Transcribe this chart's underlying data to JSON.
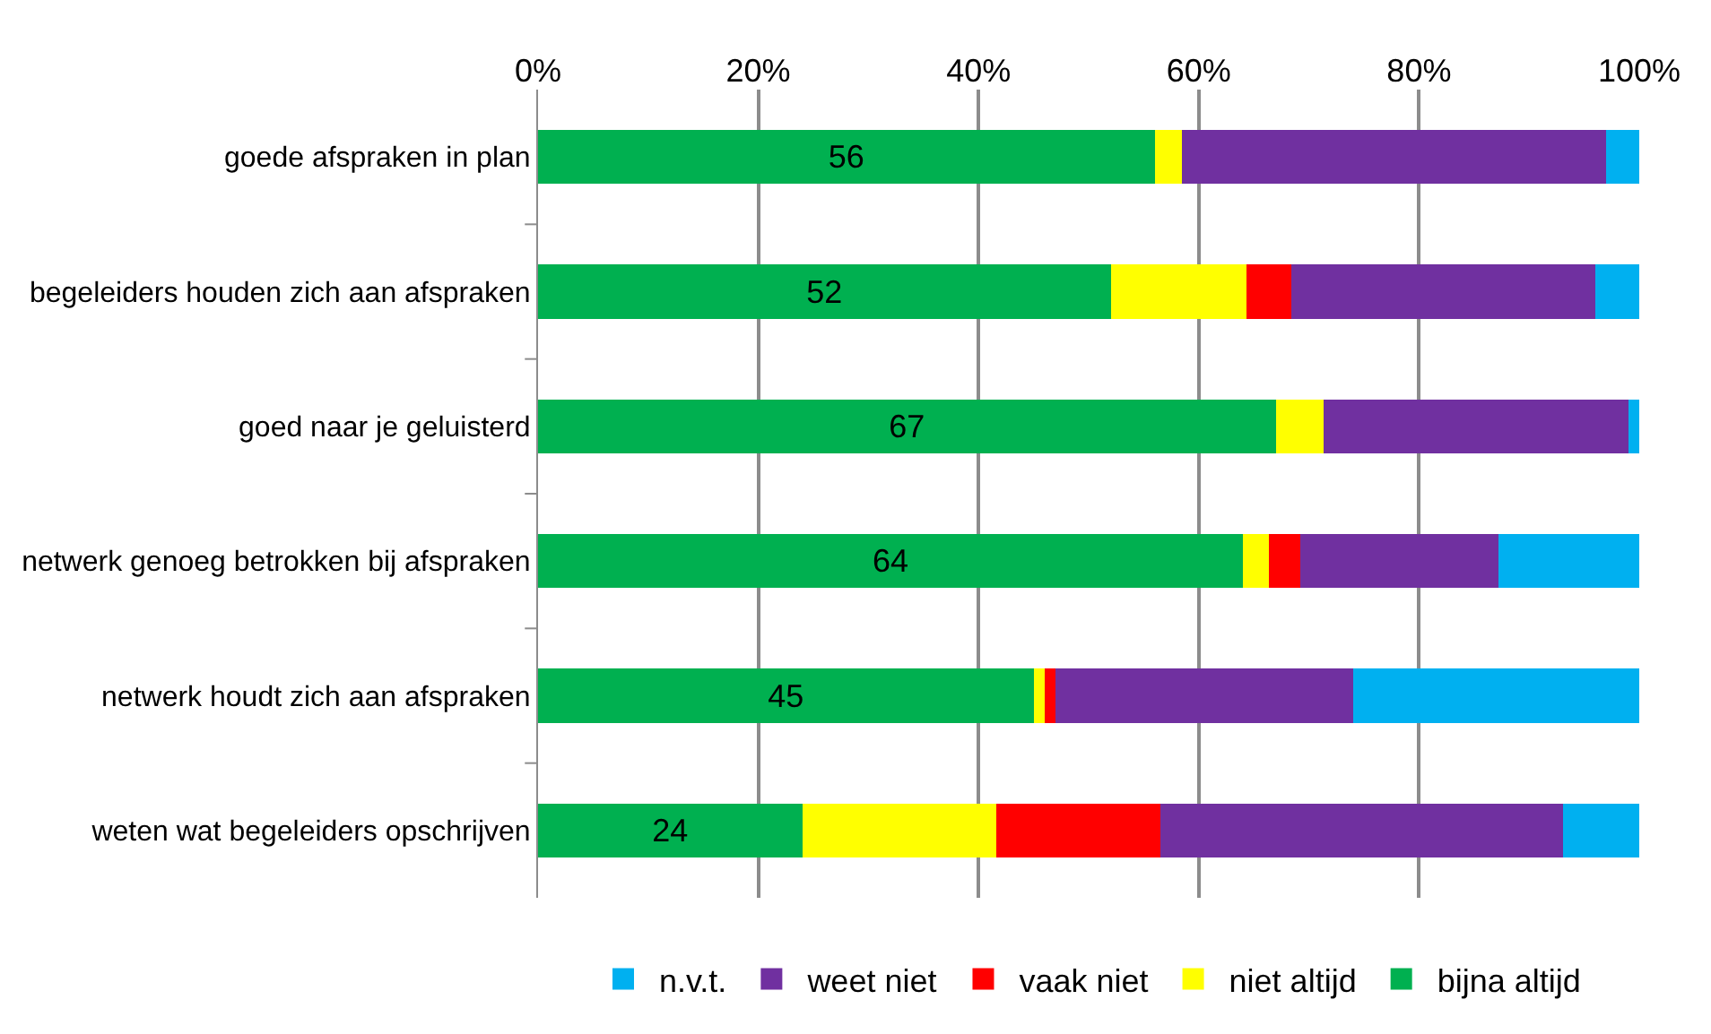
{
  "chart_data": {
    "type": "bar",
    "orientation": "horizontal",
    "stacked": true,
    "categories": [
      "goede afspraken in plan",
      "begeleiders houden zich aan afspraken",
      "goed naar je geluisterd",
      "netwerk genoeg betrokken bij afspraken",
      "netwerk houdt zich aan afspraken",
      "weten wat begeleiders opschrijven"
    ],
    "series": [
      {
        "name": "bijna altijd",
        "color": "#00b050",
        "values": [
          56,
          52,
          67,
          64,
          45,
          24
        ],
        "value_labels": [
          "56",
          "52",
          "67",
          "64",
          "45",
          "24"
        ]
      },
      {
        "name": "niet altijd",
        "color": "#ffff00",
        "values": [
          2.5,
          12.3,
          4.3,
          2.4,
          1,
          17.6
        ]
      },
      {
        "name": "vaak niet",
        "color": "#ff0000",
        "values": [
          0,
          4.1,
          0,
          2.8,
          1,
          14.9
        ]
      },
      {
        "name": "weet niet",
        "color": "#7030a0",
        "values": [
          38.5,
          27.6,
          27.7,
          18,
          27,
          36.6
        ]
      },
      {
        "name": "n.v.t.",
        "color": "#00b0f0",
        "values": [
          3,
          4,
          1,
          12.8,
          26,
          6.9
        ]
      }
    ],
    "xlim": [
      0,
      100
    ],
    "xticks": [
      {
        "value": 0,
        "label": "0%"
      },
      {
        "value": 20,
        "label": "20%"
      },
      {
        "value": 40,
        "label": "40%"
      },
      {
        "value": 60,
        "label": "60%"
      },
      {
        "value": 80,
        "label": "80%"
      },
      {
        "value": 100,
        "label": "100%"
      }
    ],
    "grid": "x",
    "legend": "bottom"
  }
}
